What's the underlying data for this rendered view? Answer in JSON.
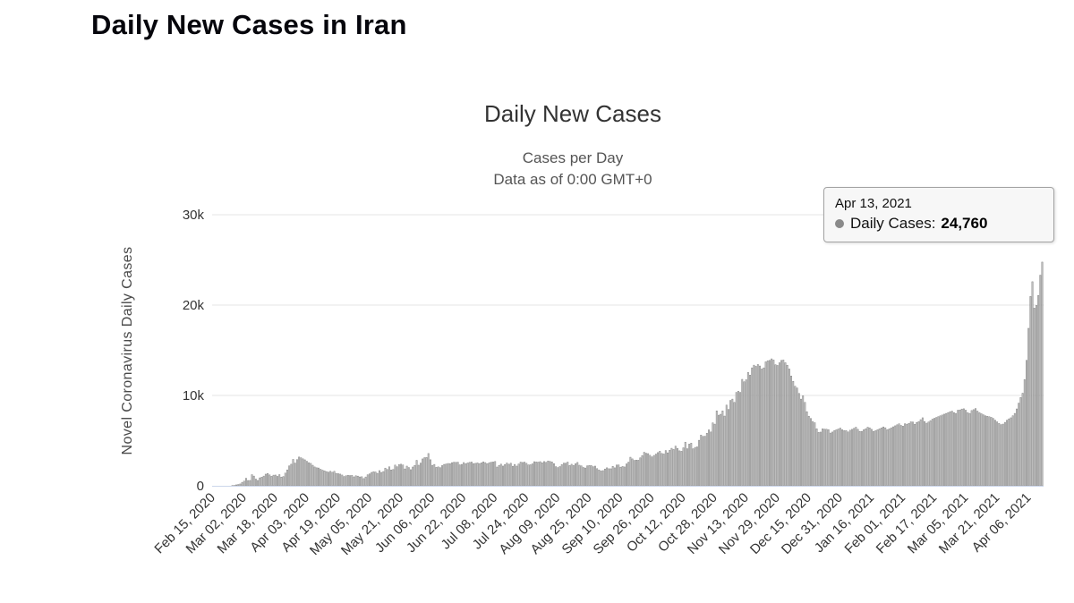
{
  "page": {
    "title": "Daily New Cases in Iran"
  },
  "chart": {
    "title": "Daily New Cases",
    "subtitle": {
      "line1": "Cases per Day",
      "line2": "Data as of 0:00 GMT+0"
    },
    "y_axis_title": "Novel Coronavirus Daily Cases",
    "tooltip": {
      "date": "Apr 13, 2021",
      "label": "Daily Cases:",
      "value": "24,760",
      "marker_color": "#8a8a8a"
    },
    "colors": {
      "bar_fill": "#c2c2c2",
      "bar_stroke": "#848484",
      "gridline": "#e6e6e6",
      "axis_line": "#ccd6eb",
      "tick_text": "#333333",
      "title_text": "#333333",
      "subtitle_text": "#555555"
    }
  },
  "chart_data": {
    "type": "bar",
    "title": "Daily New Cases",
    "subtitle": [
      "Cases per Day",
      "Data as of 0:00 GMT+0"
    ],
    "xlabel": "",
    "ylabel": "Novel Coronavirus Daily Cases",
    "ylim": [
      0,
      30000
    ],
    "yticks": [
      "0",
      "10k",
      "20k",
      "30k"
    ],
    "ytick_values": [
      0,
      10000,
      20000,
      30000
    ],
    "grid": true,
    "legend_position": "none",
    "start_date": "Feb 15, 2020",
    "end_date": "Apr 13, 2021",
    "tick_interval_days": 16,
    "x_tick_labels": [
      "Feb 15, 2020",
      "Mar 02, 2020",
      "Mar 18, 2020",
      "Apr 03, 2020",
      "Apr 19, 2020",
      "May 05, 2020",
      "May 21, 2020",
      "Jun 06, 2020",
      "Jun 22, 2020",
      "Jul 08, 2020",
      "Jul 24, 2020",
      "Aug 09, 2020",
      "Aug 25, 2020",
      "Sep 10, 2020",
      "Sep 26, 2020",
      "Oct 12, 2020",
      "Oct 28, 2020",
      "Nov 13, 2020",
      "Nov 29, 2020",
      "Dec 15, 2020",
      "Dec 31, 2020",
      "Jan 16, 2021",
      "Feb 01, 2021",
      "Feb 17, 2021",
      "Mar 05, 2021",
      "Mar 21, 2021",
      "Apr 06, 2021"
    ],
    "highlighted_point": {
      "date": "Apr 13, 2021",
      "value": 24760
    },
    "values": [
      0,
      0,
      0,
      0,
      2,
      3,
      13,
      10,
      15,
      18,
      34,
      44,
      106,
      143,
      205,
      385,
      523,
      835,
      586,
      591,
      1234,
      1076,
      743,
      595,
      881,
      958,
      1075,
      1289,
      1365,
      1209,
      1053,
      1178,
      1192,
      1046,
      1237,
      966,
      1028,
      1411,
      1762,
      2206,
      2389,
      2926,
      2517,
      2901,
      3186,
      3110,
      2988,
      2875,
      2715,
      2560,
      2483,
      2274,
      2089,
      1997,
      1972,
      1837,
      1734,
      1657,
      1574,
      1512,
      1606,
      1499,
      1606,
      1374,
      1343,
      1297,
      1194,
      1030,
      1115,
      1168,
      1134,
      1153,
      991,
      1112,
      1073,
      983,
      1006,
      802,
      976,
      1223,
      1323,
      1485,
      1556,
      1529,
      1383,
      1683,
      1481,
      1574,
      1958,
      1808,
      2102,
      1757,
      1806,
      2294,
      2111,
      2346,
      2392,
      2311,
      1869,
      2180,
      2023,
      1787,
      2080,
      2258,
      2819,
      2282,
      2516,
      2979,
      3117,
      3134,
      3574,
      2886,
      2269,
      2364,
      2043,
      2095,
      2011,
      2238,
      2369,
      2410,
      2472,
      2449,
      2563,
      2612,
      2596,
      2615,
      2322,
      2368,
      2573,
      2445,
      2531,
      2595,
      2628,
      2456,
      2489,
      2536,
      2457,
      2549,
      2652,
      2566,
      2449,
      2560,
      2613,
      2637,
      2691,
      2079,
      2262,
      2397,
      2186,
      2349,
      2521,
      2388,
      2500,
      2166,
      2366,
      2182,
      2414,
      2625,
      2586,
      2621,
      2489,
      2316,
      2333,
      2434,
      2667,
      2636,
      2621,
      2674,
      2548,
      2685,
      2598,
      2751,
      2697,
      2634,
      2450,
      2125,
      2020,
      2132,
      2345,
      2510,
      2501,
      2625,
      2247,
      2385,
      2247,
      2444,
      2586,
      2279,
      2206,
      2028,
      1972,
      2213,
      2245,
      2243,
      2115,
      2179,
      1905,
      1754,
      1642,
      1682,
      1858,
      1994,
      1894,
      1887,
      2152,
      1992,
      2302,
      2313,
      2063,
      2139,
      2089,
      2429,
      2619,
      3163,
      2981,
      2815,
      2845,
      2830,
      3097,
      3341,
      3712,
      3605,
      3563,
      3381,
      3204,
      3362,
      3512,
      3677,
      3825,
      3582,
      3523,
      3902,
      3653,
      3928,
      4151,
      4019,
      4392,
      4142,
      3875,
      3822,
      4206,
      4830,
      4108,
      4616,
      4721,
      4103,
      4251,
      4311,
      5039,
      5616,
      5471,
      5487,
      5814,
      6191,
      5960,
      6968,
      6824,
      8293,
      7820,
      7920,
      8289,
      7719,
      8932,
      8452,
      9450,
      9594,
      9236,
      10339,
      10463,
      10339,
      11780,
      11517,
      11737,
      12543,
      12248,
      13053,
      13352,
      13223,
      13421,
      13260,
      12931,
      13053,
      13721,
      13843,
      13882,
      14051,
      13922,
      13402,
      13321,
      13621,
      13881,
      13922,
      13621,
      13341,
      12931,
      12151,
      11561,
      11023,
      10827,
      10223,
      9594,
      9963,
      9236,
      8201,
      7704,
      7451,
      7121,
      6982,
      6312,
      5907,
      5945,
      6312,
      6272,
      6261,
      6208,
      5841,
      5953,
      6108,
      6198,
      6289,
      6389,
      6208,
      6108,
      6113,
      5960,
      6152,
      6251,
      6360,
      6485,
      6251,
      6016,
      6026,
      6208,
      6317,
      6485,
      6417,
      6251,
      6016,
      6101,
      6205,
      6309,
      6413,
      6517,
      6421,
      6204,
      6309,
      6420,
      6531,
      6642,
      6753,
      6864,
      6680,
      6597,
      6870,
      6820,
      6907,
      7081,
      7061,
      6811,
      7005,
      7110,
      7321,
      7530,
      7120,
      6931,
      7061,
      7212,
      7383,
      7474,
      7565,
      7656,
      7747,
      7838,
      7930,
      8011,
      8103,
      8206,
      8263,
      8103,
      8011,
      8367,
      8397,
      8495,
      8525,
      8367,
      8105,
      8010,
      8330,
      8430,
      8554,
      8270,
      8105,
      7975,
      7860,
      7750,
      7701,
      7650,
      7580,
      7460,
      7260,
      7081,
      6905,
      6770,
      6830,
      7020,
      7260,
      7410,
      7530,
      7757,
      8010,
      8510,
      9151,
      9768,
      10250,
      11750,
      13890,
      17430,
      20954,
      22586,
      19666,
      19963,
      21063,
      23311,
      24760
    ]
  }
}
